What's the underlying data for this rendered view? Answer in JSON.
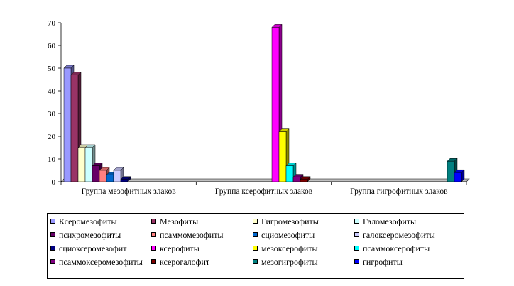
{
  "chart_data": {
    "type": "bar",
    "categories": [
      "Группа мезофитных злаков",
      "Группа ксерофитных злаков",
      "Группа гигрофитных злаков"
    ],
    "ylim": [
      0,
      70
    ],
    "yticks": [
      0,
      10,
      20,
      30,
      40,
      50,
      60,
      70
    ],
    "grid": false,
    "legend_position": "bottom",
    "series": [
      {
        "name": "Ксеромезофиты",
        "color": "#9999ff",
        "values": [
          50,
          0,
          0
        ]
      },
      {
        "name": "Мезофиты",
        "color": "#993366",
        "values": [
          47,
          0,
          0
        ]
      },
      {
        "name": "Гигромезофиты",
        "color": "#ffffcc",
        "values": [
          15,
          0,
          0
        ]
      },
      {
        "name": "Галомезофиты",
        "color": "#ccffff",
        "values": [
          15,
          0,
          0
        ]
      },
      {
        "name": "психромезофиты",
        "color": "#660066",
        "values": [
          7,
          0,
          0
        ]
      },
      {
        "name": "псаммомезофиты",
        "color": "#ff8080",
        "values": [
          5,
          0,
          0
        ]
      },
      {
        "name": "сциомезофиты",
        "color": "#0066cc",
        "values": [
          3,
          0,
          0
        ]
      },
      {
        "name": "галоксеромезофиты",
        "color": "#ccccff",
        "values": [
          5,
          0,
          0
        ]
      },
      {
        "name": "сциоксеромезофит",
        "color": "#000080",
        "values": [
          1,
          0,
          0
        ]
      },
      {
        "name": "ксерофиты",
        "color": "#ff00ff",
        "values": [
          0,
          68,
          0
        ]
      },
      {
        "name": "мезоксерофиты",
        "color": "#ffff00",
        "values": [
          0,
          22,
          0
        ]
      },
      {
        "name": "псаммоксерофиты",
        "color": "#00ffff",
        "values": [
          0,
          7,
          0
        ]
      },
      {
        "name": "псаммоксеромезофиты",
        "color": "#800080",
        "values": [
          0,
          2,
          0
        ]
      },
      {
        "name": "ксерогалофит",
        "color": "#800000",
        "values": [
          0,
          1,
          0
        ]
      },
      {
        "name": "мезогигрофиты",
        "color": "#008080",
        "values": [
          0,
          0,
          9
        ]
      },
      {
        "name": "гигрофиты",
        "color": "#0000ff",
        "values": [
          0,
          0,
          4
        ]
      }
    ]
  }
}
